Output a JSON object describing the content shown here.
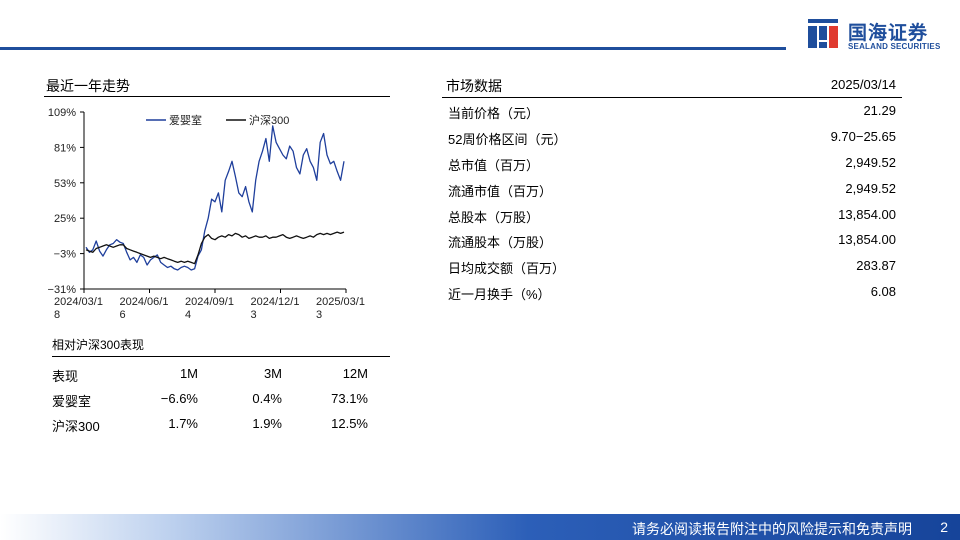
{
  "brand": {
    "name_cn": "国海证券",
    "name_en": "SEALAND SECURITIES"
  },
  "chart_section": {
    "title": "最近一年走势"
  },
  "chart_data": {
    "type": "line",
    "ylim": [
      -31,
      109
    ],
    "y_ticks": [
      "109%",
      "81%",
      "53%",
      "25%",
      "−3%",
      "−31%"
    ],
    "x_ticks": [
      {
        "l1": "2024/03/1",
        "l2": "8"
      },
      {
        "l1": "2024/06/1",
        "l2": "6"
      },
      {
        "l1": "2024/09/1",
        "l2": "4"
      },
      {
        "l1": "2024/12/1",
        "l2": "3"
      },
      {
        "l1": "2025/03/1",
        "l2": "3"
      }
    ],
    "legend_position": "top",
    "series": [
      {
        "name": "爱婴室",
        "color": "#1f3f9c",
        "values": [
          2,
          -2,
          0,
          7,
          -1,
          -5,
          0,
          4,
          5,
          8,
          6,
          5,
          -2,
          -8,
          -6,
          -10,
          -4,
          -6,
          -12,
          -8,
          -6,
          -4,
          -10,
          -12,
          -14,
          -13,
          -15,
          -16,
          -14,
          -13,
          -14,
          -16,
          -15,
          -5,
          0,
          15,
          25,
          40,
          38,
          45,
          30,
          55,
          62,
          70,
          58,
          45,
          42,
          50,
          38,
          30,
          55,
          70,
          78,
          88,
          70,
          98,
          85,
          80,
          75,
          72,
          82,
          78,
          65,
          60,
          75,
          80,
          70,
          65,
          55,
          85,
          92,
          75,
          68,
          70,
          62,
          55,
          70
        ]
      },
      {
        "name": "沪深300",
        "color": "#111111",
        "values": [
          0,
          -1,
          -2,
          1,
          2,
          3,
          4,
          3,
          2,
          3,
          4,
          4,
          1,
          0,
          -1,
          -2,
          -3,
          -4,
          -5,
          -6,
          -5,
          -6,
          -7,
          -6,
          -7,
          -8,
          -9,
          -10,
          -9,
          -10,
          -9,
          -10,
          -11,
          -4,
          5,
          10,
          12,
          9,
          8,
          10,
          11,
          10,
          12,
          11,
          13,
          12,
          10,
          11,
          9,
          10,
          11,
          10,
          10,
          11,
          9,
          10,
          10,
          11,
          12,
          10,
          9,
          10,
          11,
          10,
          9,
          10,
          11,
          10,
          12,
          13,
          12,
          13,
          12,
          13,
          14,
          13,
          14
        ]
      }
    ]
  },
  "performance": {
    "title": "相对沪深300表现",
    "headers": [
      "表现",
      "1M",
      "3M",
      "12M"
    ],
    "rows": [
      [
        "爱婴室",
        "−6.6%",
        "0.4%",
        "73.1%"
      ],
      [
        "沪深300",
        "1.7%",
        "1.9%",
        "12.5%"
      ]
    ]
  },
  "market": {
    "title": "市场数据",
    "date": "2025/03/14",
    "rows": [
      {
        "label": "当前价格（元）",
        "value": "21.29"
      },
      {
        "label": "52周价格区间（元）",
        "value": "9.70−25.65"
      },
      {
        "label": "总市值（百万）",
        "value": "2,949.52"
      },
      {
        "label": "流通市值（百万）",
        "value": "2,949.52"
      },
      {
        "label": "总股本（万股）",
        "value": "13,854.00"
      },
      {
        "label": "流通股本（万股）",
        "value": "13,854.00"
      },
      {
        "label": "日均成交额（百万）",
        "value": "283.87"
      },
      {
        "label": "近一月换手（%）",
        "value": "6.08"
      }
    ]
  },
  "footer": {
    "disclaimer": "请务必阅读报告附注中的风险提示和免责声明",
    "page": "2"
  }
}
